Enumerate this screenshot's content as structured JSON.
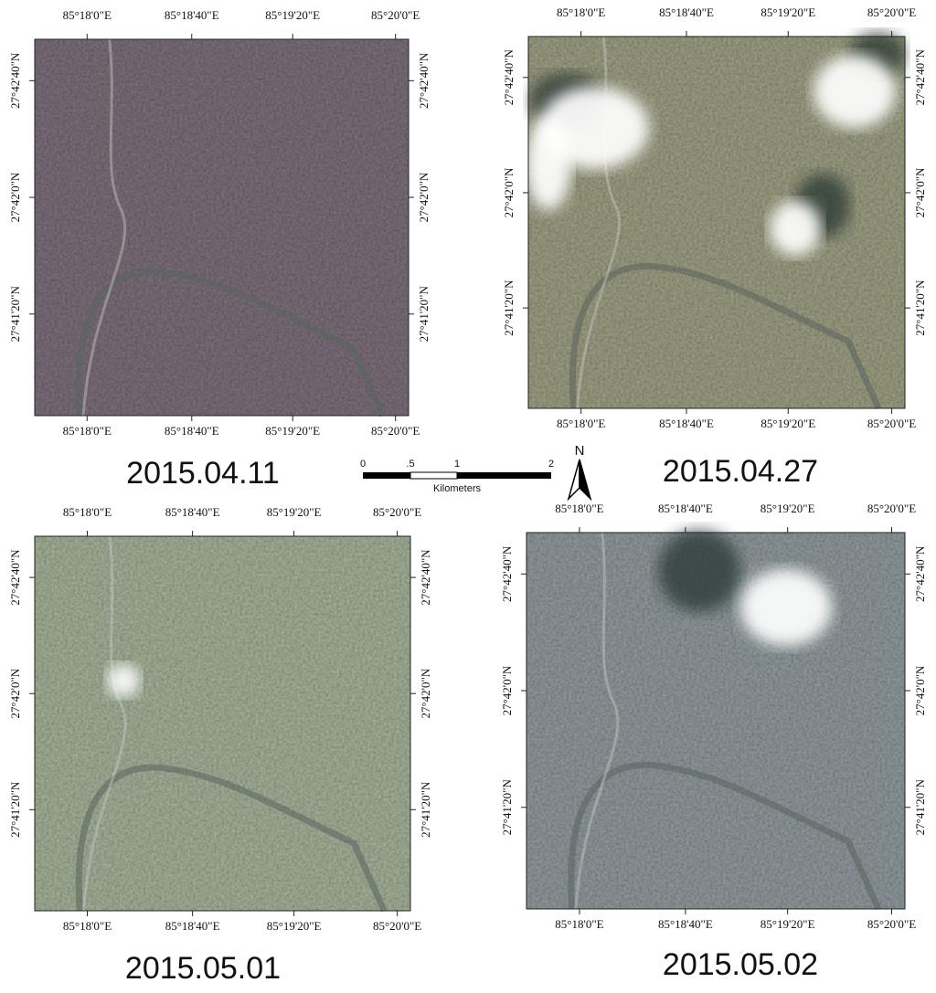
{
  "panels": [
    {
      "date": "2015.04.11",
      "top_labels": [
        "85°18'0\"E",
        "85°18'40\"E",
        "85°19'20\"E",
        "85°20'0\"E"
      ],
      "bottom_labels": [
        "85°18'0\"E",
        "85°18'40\"E",
        "85°19'20\"E",
        "85°20'0\"E"
      ],
      "left_labels": [
        "27°42'40\"N",
        "27°42'0\"N",
        "27°41'20\"N"
      ],
      "right_labels": [
        "27°42'40\"N",
        "27°42'0\"N",
        "27°41'20\"N"
      ]
    },
    {
      "date": "2015.04.27",
      "top_labels": [
        "85°18'0\"E",
        "85°18'40\"E",
        "85°19'20\"E",
        "85°20'0\"E"
      ],
      "bottom_labels": [
        "85°18'0\"E",
        "85°18'40\"E",
        "85°19'20\"E",
        "85°20'0\"E"
      ],
      "left_labels": [
        "27°42'40\"N",
        "27°42'0\"N",
        "27°41'20\"N"
      ],
      "right_labels": [
        "27°42'40\"N",
        "27°42'0\"N",
        "27°41'20\"N"
      ]
    },
    {
      "date": "2015.05.01",
      "top_labels": [
        "85°18'0\"E",
        "85°18'40\"E",
        "85°19'20\"E",
        "85°20'0\"E"
      ],
      "bottom_labels": [
        "85°18'0\"E",
        "85°18'40\"E",
        "85°19'20\"E",
        "85°20'0\"E"
      ],
      "left_labels": [
        "27°42'40\"N",
        "27°42'0\"N",
        "27°41'20\"N"
      ],
      "right_labels": [
        "27°42'40\"N",
        "27°42'0\"N",
        "27°41'20\"N"
      ]
    },
    {
      "date": "2015.05.02",
      "top_labels": [
        "85°18'0\"E",
        "85°18'40\"E",
        "85°19'20\"E",
        "85°20'0\"E"
      ],
      "bottom_labels": [
        "85°18'0\"E",
        "85°18'40\"E",
        "85°19'20\"E",
        "85°20'0\"E"
      ],
      "left_labels": [
        "27°42'40\"N",
        "27°42'0\"N",
        "27°41'20\"N"
      ],
      "right_labels": [
        "27°42'40\"N",
        "27°42'0\"N",
        "27°41'20\"N"
      ]
    }
  ],
  "scale_bar": {
    "ticks": [
      "0",
      ".5",
      "1",
      "2"
    ],
    "unit": "Kilometers"
  },
  "north_arrow": "N"
}
